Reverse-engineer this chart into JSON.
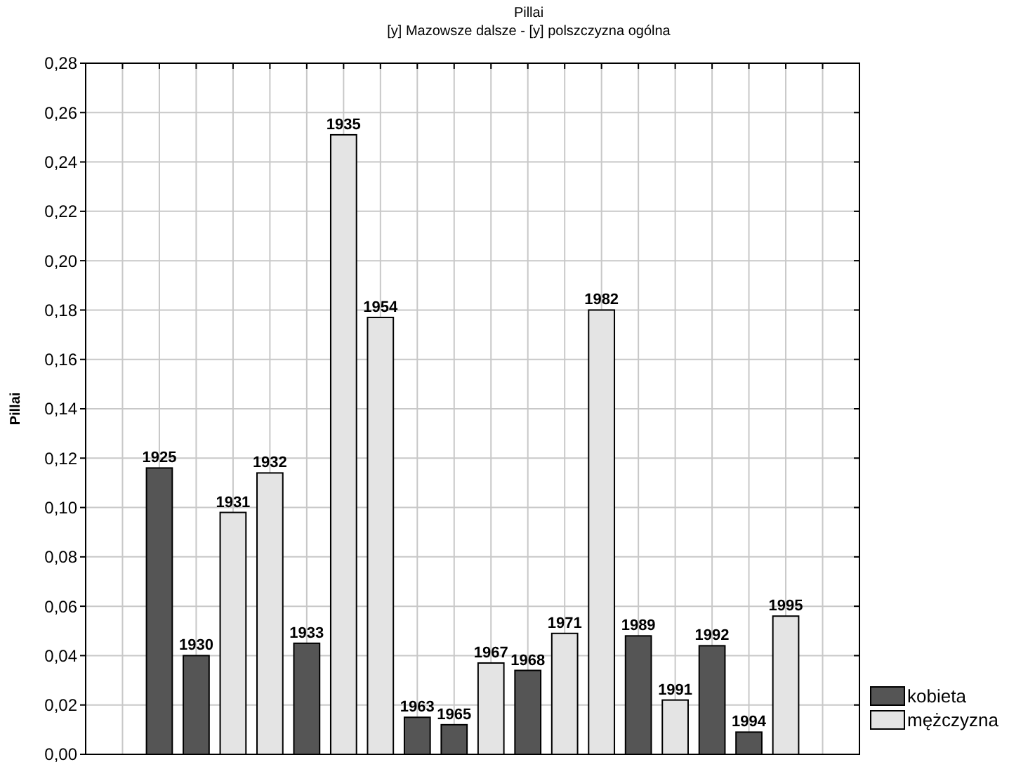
{
  "chart_data": {
    "type": "bar",
    "title": "Pillai",
    "subtitle": "[y] Mazowsze dalsze - [y] polszczyzna ogólna",
    "ylabel": "Pillai",
    "categories": [
      null,
      "1925",
      "1930",
      "1931",
      "1932",
      "1933",
      "1935",
      "1954",
      "1963",
      "1965",
      "1967",
      "1968",
      "1971",
      "1982",
      "1989",
      "1991",
      "1992",
      "1994",
      "1995",
      null
    ],
    "series": [
      {
        "name": "kobieta",
        "color": "#555555",
        "values": [
          null,
          0.116,
          0.04,
          null,
          null,
          0.045,
          null,
          null,
          0.015,
          0.012,
          null,
          0.034,
          null,
          null,
          0.048,
          null,
          0.044,
          0.009,
          null,
          null
        ]
      },
      {
        "name": "mężczyzna",
        "color": "#e4e4e4",
        "values": [
          null,
          null,
          null,
          0.098,
          0.114,
          null,
          0.251,
          0.177,
          null,
          null,
          0.037,
          null,
          0.049,
          0.18,
          null,
          0.022,
          null,
          null,
          0.056,
          null
        ]
      }
    ],
    "ylim": [
      0,
      0.28
    ],
    "yticks": [
      {
        "value": 0,
        "label": "0,00"
      },
      {
        "value": 0.02,
        "label": "0,02"
      },
      {
        "value": 0.04,
        "label": "0,04"
      },
      {
        "value": 0.06,
        "label": "0,06"
      },
      {
        "value": 0.08,
        "label": "0,08"
      },
      {
        "value": 0.1,
        "label": "0,10"
      },
      {
        "value": 0.12,
        "label": "0,12"
      },
      {
        "value": 0.14,
        "label": "0,14"
      },
      {
        "value": 0.16,
        "label": "0,16"
      },
      {
        "value": 0.18,
        "label": "0,18"
      },
      {
        "value": 0.2,
        "label": "0,20"
      },
      {
        "value": 0.22,
        "label": "0,22"
      },
      {
        "value": 0.24,
        "label": "0,24"
      },
      {
        "value": 0.26,
        "label": "0,26"
      },
      {
        "value": 0.28,
        "label": "0,28"
      }
    ],
    "grid": true,
    "legend": "bottom right"
  }
}
